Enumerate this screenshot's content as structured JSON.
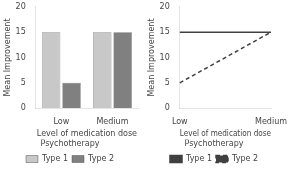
{
  "chart_data": [
    {
      "type": "bar",
      "categories": [
        "Low",
        "Medium"
      ],
      "series": [
        {
          "name": "Type 1",
          "color": "#c8c8c8",
          "values": [
            15,
            15
          ]
        },
        {
          "name": "Type 2",
          "color": "#808080",
          "values": [
            5,
            15
          ]
        }
      ],
      "xlabel": "Level of medication dose",
      "ylabel": "Mean Improvement",
      "legend_title": "Psychotherapy",
      "legend": "bottom",
      "ylim": [
        0,
        20
      ],
      "yticks": [
        0,
        5,
        10,
        15,
        20
      ],
      "grid": false
    },
    {
      "type": "line",
      "categories": [
        "Low",
        "Medium"
      ],
      "series": [
        {
          "name": "Type 1",
          "color": "#404040",
          "line_style": "solid",
          "values": [
            15,
            15
          ]
        },
        {
          "name": "Type 2",
          "color": "#404040",
          "line_style": "dashed",
          "values": [
            5,
            15
          ]
        }
      ],
      "xlabel": "Level of medication dose",
      "ylabel": "Mean Improvement",
      "legend_title": "Psychotherapy",
      "legend": "bottom",
      "ylim": [
        0,
        20
      ],
      "yticks": [
        0,
        5,
        10,
        15,
        20
      ],
      "grid": false
    }
  ]
}
